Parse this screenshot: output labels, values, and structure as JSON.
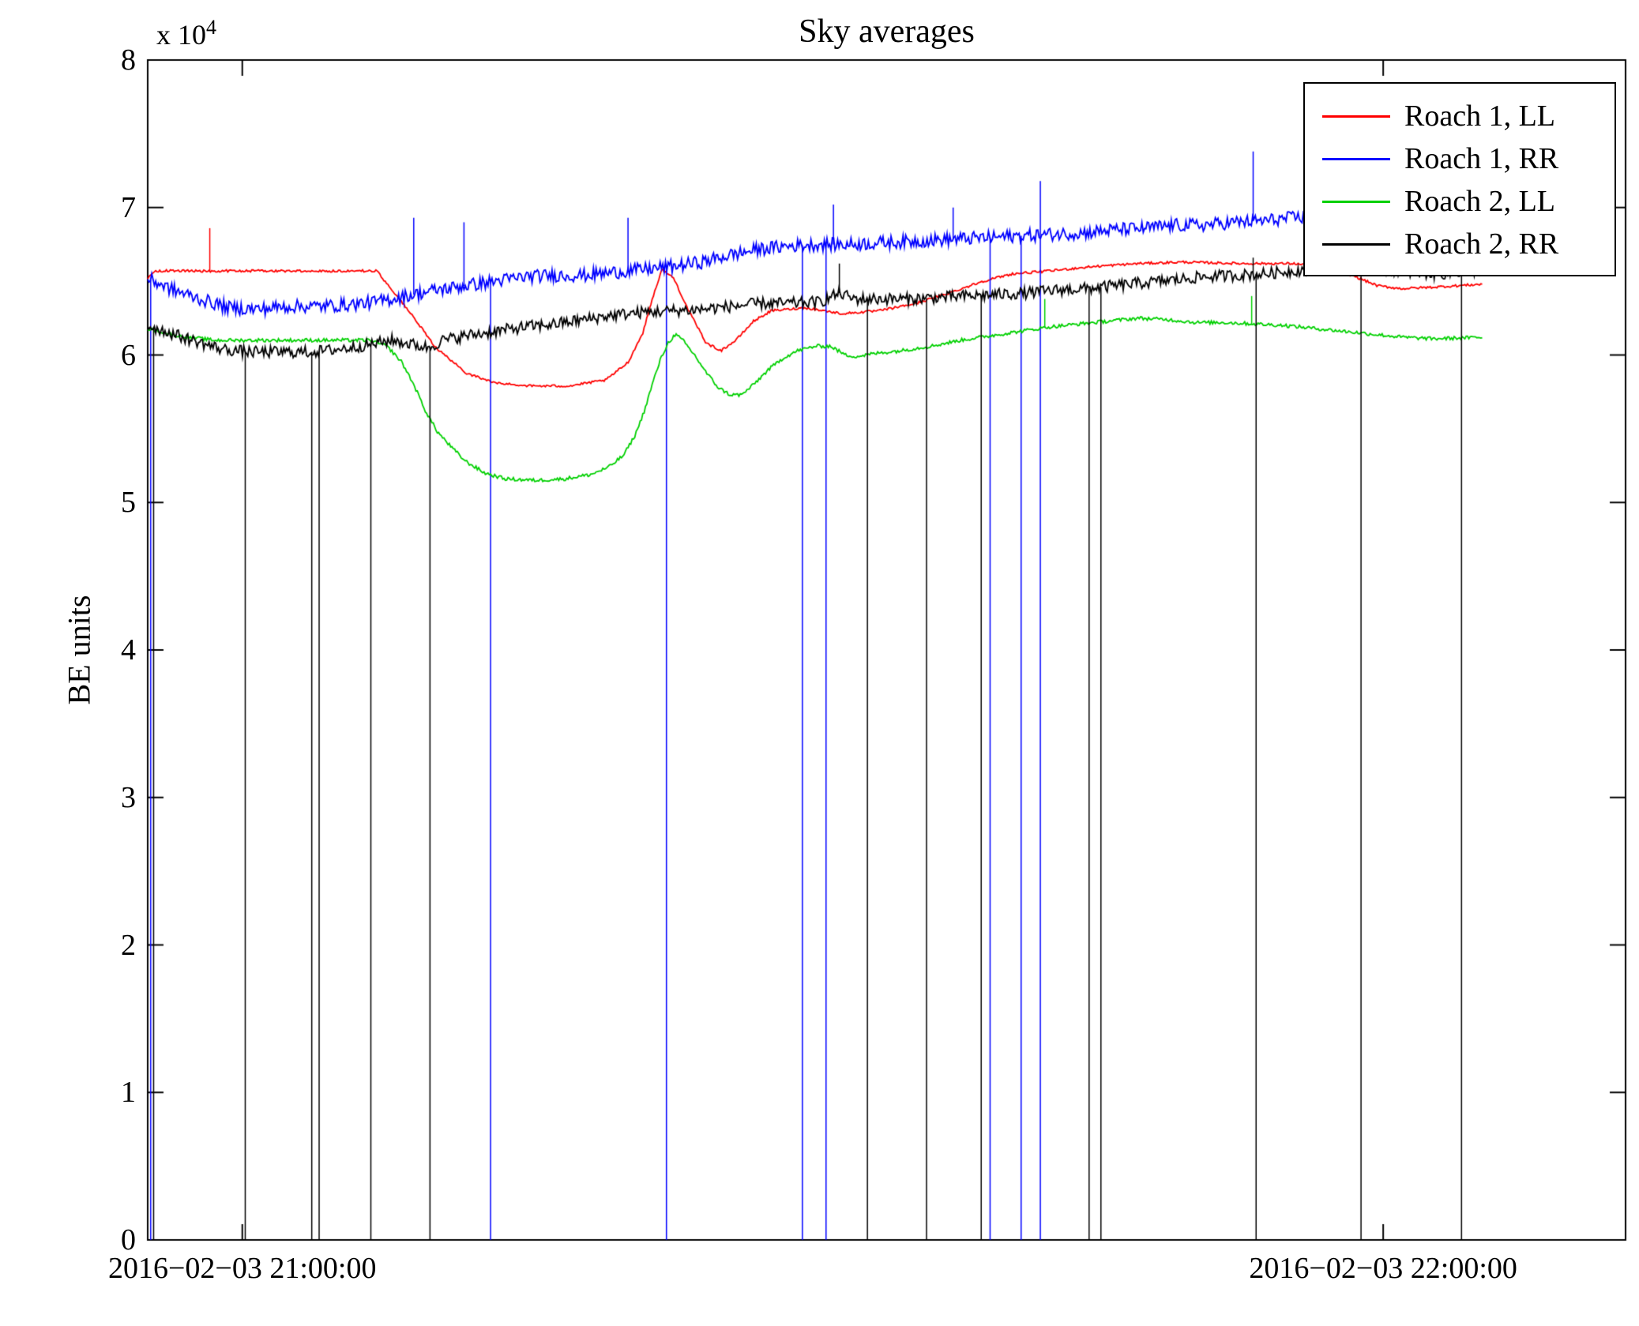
{
  "figure": {
    "background": "#ffffff"
  },
  "chart_data": {
    "type": "line",
    "title": "Sky averages",
    "xlabel": "",
    "ylabel": "BE units",
    "y_multiplier_base": "x 10",
    "y_multiplier_exp": "4",
    "ylim": [
      0,
      8
    ],
    "y_unit": "1e4 BE units",
    "grid": false,
    "legend_position": "top-right",
    "y_ticks": [
      0,
      1,
      2,
      3,
      4,
      5,
      6,
      7,
      8
    ],
    "x_ticks": [
      {
        "pos": 0.064,
        "label": "2016−02−03 21:00:00"
      },
      {
        "pos": 0.836,
        "label": "2016−02−03 22:00:00"
      }
    ],
    "series": [
      {
        "name": "Roach 1, LL",
        "color": "#ff0000",
        "noise": 0.008,
        "points": [
          [
            0.0,
            6.52
          ],
          [
            0.006,
            6.57
          ],
          [
            0.155,
            6.57
          ],
          [
            0.175,
            6.32
          ],
          [
            0.195,
            6.05
          ],
          [
            0.215,
            5.88
          ],
          [
            0.235,
            5.81
          ],
          [
            0.26,
            5.79
          ],
          [
            0.285,
            5.79
          ],
          [
            0.31,
            5.83
          ],
          [
            0.325,
            5.95
          ],
          [
            0.335,
            6.15
          ],
          [
            0.342,
            6.4
          ],
          [
            0.348,
            6.58
          ],
          [
            0.356,
            6.52
          ],
          [
            0.366,
            6.3
          ],
          [
            0.378,
            6.08
          ],
          [
            0.388,
            6.03
          ],
          [
            0.398,
            6.1
          ],
          [
            0.41,
            6.23
          ],
          [
            0.422,
            6.3
          ],
          [
            0.445,
            6.32
          ],
          [
            0.47,
            6.28
          ],
          [
            0.495,
            6.3
          ],
          [
            0.52,
            6.35
          ],
          [
            0.545,
            6.43
          ],
          [
            0.565,
            6.5
          ],
          [
            0.585,
            6.55
          ],
          [
            0.61,
            6.57
          ],
          [
            0.64,
            6.6
          ],
          [
            0.67,
            6.62
          ],
          [
            0.7,
            6.63
          ],
          [
            0.74,
            6.62
          ],
          [
            0.775,
            6.62
          ],
          [
            0.795,
            6.6
          ],
          [
            0.815,
            6.54
          ],
          [
            0.832,
            6.47
          ],
          [
            0.848,
            6.45
          ],
          [
            0.87,
            6.46
          ],
          [
            0.903,
            6.48
          ]
        ],
        "spikes": [
          [
            0.042,
            6.86
          ]
        ],
        "dropouts": []
      },
      {
        "name": "Roach 1, RR",
        "color": "#0000ff",
        "noise": 0.045,
        "points": [
          [
            0.0,
            6.52
          ],
          [
            0.015,
            6.45
          ],
          [
            0.035,
            6.38
          ],
          [
            0.055,
            6.32
          ],
          [
            0.075,
            6.31
          ],
          [
            0.095,
            6.33
          ],
          [
            0.115,
            6.33
          ],
          [
            0.135,
            6.34
          ],
          [
            0.155,
            6.36
          ],
          [
            0.175,
            6.4
          ],
          [
            0.195,
            6.44
          ],
          [
            0.215,
            6.47
          ],
          [
            0.235,
            6.5
          ],
          [
            0.255,
            6.53
          ],
          [
            0.275,
            6.54
          ],
          [
            0.295,
            6.54
          ],
          [
            0.315,
            6.56
          ],
          [
            0.335,
            6.58
          ],
          [
            0.355,
            6.6
          ],
          [
            0.375,
            6.63
          ],
          [
            0.395,
            6.68
          ],
          [
            0.415,
            6.72
          ],
          [
            0.435,
            6.74
          ],
          [
            0.455,
            6.75
          ],
          [
            0.475,
            6.75
          ],
          [
            0.495,
            6.76
          ],
          [
            0.515,
            6.77
          ],
          [
            0.535,
            6.78
          ],
          [
            0.555,
            6.79
          ],
          [
            0.575,
            6.8
          ],
          [
            0.595,
            6.81
          ],
          [
            0.615,
            6.82
          ],
          [
            0.635,
            6.83
          ],
          [
            0.655,
            6.85
          ],
          [
            0.675,
            6.86
          ],
          [
            0.695,
            6.88
          ],
          [
            0.715,
            6.88
          ],
          [
            0.735,
            6.9
          ],
          [
            0.755,
            6.91
          ],
          [
            0.775,
            6.93
          ],
          [
            0.795,
            6.94
          ],
          [
            0.815,
            6.95
          ],
          [
            0.835,
            6.96
          ],
          [
            0.855,
            6.97
          ],
          [
            0.875,
            6.97
          ],
          [
            0.903,
            6.97
          ]
        ],
        "spikes": [
          [
            0.18,
            6.93
          ],
          [
            0.214,
            6.9
          ],
          [
            0.325,
            6.93
          ],
          [
            0.464,
            7.02
          ],
          [
            0.545,
            7.0
          ],
          [
            0.604,
            7.18
          ],
          [
            0.748,
            7.38
          ]
        ],
        "dropouts": [
          0.002,
          0.232,
          0.351,
          0.443,
          0.459,
          0.57,
          0.591,
          0.604
        ]
      },
      {
        "name": "Roach 2, LL",
        "color": "#00d000",
        "noise": 0.012,
        "points": [
          [
            0.0,
            6.18
          ],
          [
            0.02,
            6.13
          ],
          [
            0.045,
            6.1
          ],
          [
            0.08,
            6.1
          ],
          [
            0.12,
            6.1
          ],
          [
            0.15,
            6.1
          ],
          [
            0.162,
            6.06
          ],
          [
            0.172,
            5.95
          ],
          [
            0.18,
            5.8
          ],
          [
            0.188,
            5.62
          ],
          [
            0.196,
            5.48
          ],
          [
            0.205,
            5.38
          ],
          [
            0.215,
            5.28
          ],
          [
            0.228,
            5.2
          ],
          [
            0.242,
            5.16
          ],
          [
            0.262,
            5.15
          ],
          [
            0.282,
            5.16
          ],
          [
            0.3,
            5.19
          ],
          [
            0.312,
            5.24
          ],
          [
            0.322,
            5.32
          ],
          [
            0.33,
            5.46
          ],
          [
            0.336,
            5.62
          ],
          [
            0.342,
            5.82
          ],
          [
            0.347,
            5.97
          ],
          [
            0.352,
            6.08
          ],
          [
            0.357,
            6.14
          ],
          [
            0.362,
            6.1
          ],
          [
            0.37,
            6.0
          ],
          [
            0.378,
            5.88
          ],
          [
            0.386,
            5.78
          ],
          [
            0.394,
            5.73
          ],
          [
            0.402,
            5.73
          ],
          [
            0.41,
            5.8
          ],
          [
            0.42,
            5.9
          ],
          [
            0.43,
            5.98
          ],
          [
            0.44,
            6.03
          ],
          [
            0.452,
            6.06
          ],
          [
            0.462,
            6.06
          ],
          [
            0.472,
            6.0
          ],
          [
            0.48,
            5.99
          ],
          [
            0.492,
            6.01
          ],
          [
            0.51,
            6.03
          ],
          [
            0.53,
            6.06
          ],
          [
            0.55,
            6.1
          ],
          [
            0.57,
            6.13
          ],
          [
            0.59,
            6.16
          ],
          [
            0.61,
            6.19
          ],
          [
            0.63,
            6.21
          ],
          [
            0.65,
            6.23
          ],
          [
            0.67,
            6.25
          ],
          [
            0.69,
            6.24
          ],
          [
            0.71,
            6.22
          ],
          [
            0.73,
            6.22
          ],
          [
            0.75,
            6.21
          ],
          [
            0.77,
            6.2
          ],
          [
            0.79,
            6.18
          ],
          [
            0.81,
            6.16
          ],
          [
            0.83,
            6.14
          ],
          [
            0.85,
            6.12
          ],
          [
            0.87,
            6.11
          ],
          [
            0.903,
            6.12
          ]
        ],
        "spikes": [
          [
            0.607,
            6.38
          ],
          [
            0.747,
            6.4
          ]
        ],
        "dropouts": []
      },
      {
        "name": "Roach 2, RR",
        "color": "#000000",
        "noise": 0.04,
        "points": [
          [
            0.0,
            6.2
          ],
          [
            0.015,
            6.15
          ],
          [
            0.03,
            6.1
          ],
          [
            0.05,
            6.04
          ],
          [
            0.07,
            6.02
          ],
          [
            0.09,
            6.02
          ],
          [
            0.11,
            6.02
          ],
          [
            0.13,
            6.04
          ],
          [
            0.15,
            6.07
          ],
          [
            0.165,
            6.1
          ],
          [
            0.18,
            6.07
          ],
          [
            0.19,
            6.05
          ],
          [
            0.2,
            6.1
          ],
          [
            0.215,
            6.13
          ],
          [
            0.235,
            6.16
          ],
          [
            0.255,
            6.19
          ],
          [
            0.275,
            6.21
          ],
          [
            0.295,
            6.24
          ],
          [
            0.315,
            6.27
          ],
          [
            0.335,
            6.29
          ],
          [
            0.355,
            6.3
          ],
          [
            0.375,
            6.31
          ],
          [
            0.395,
            6.33
          ],
          [
            0.415,
            6.35
          ],
          [
            0.435,
            6.35
          ],
          [
            0.455,
            6.36
          ],
          [
            0.468,
            6.42
          ],
          [
            0.478,
            6.38
          ],
          [
            0.495,
            6.38
          ],
          [
            0.515,
            6.38
          ],
          [
            0.535,
            6.39
          ],
          [
            0.555,
            6.4
          ],
          [
            0.575,
            6.41
          ],
          [
            0.595,
            6.42
          ],
          [
            0.615,
            6.44
          ],
          [
            0.635,
            6.45
          ],
          [
            0.655,
            6.47
          ],
          [
            0.675,
            6.49
          ],
          [
            0.695,
            6.51
          ],
          [
            0.715,
            6.53
          ],
          [
            0.735,
            6.54
          ],
          [
            0.755,
            6.55
          ],
          [
            0.775,
            6.57
          ],
          [
            0.795,
            6.59
          ],
          [
            0.815,
            6.6
          ],
          [
            0.835,
            6.59
          ],
          [
            0.855,
            6.56
          ],
          [
            0.875,
            6.55
          ],
          [
            0.903,
            6.58
          ]
        ],
        "spikes": [
          [
            0.468,
            6.62
          ],
          [
            0.748,
            6.66
          ]
        ],
        "dropouts": [
          0.004,
          0.066,
          0.111,
          0.116,
          0.151,
          0.191,
          0.487,
          0.527,
          0.564,
          0.637,
          0.645,
          0.75,
          0.821,
          0.889
        ]
      }
    ]
  }
}
